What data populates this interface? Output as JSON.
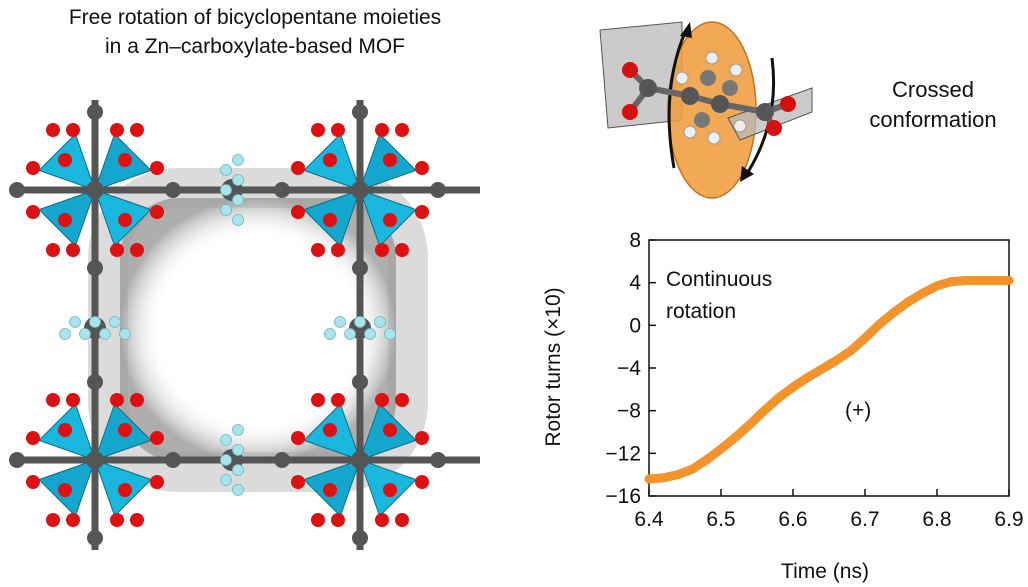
{
  "figure": {
    "title_line1": "Free rotation of bicyclopentane moieties",
    "title_line2": "in a Zn–carboxylate-based MOF",
    "conformation_line1": "Crossed",
    "conformation_line2": "conformation"
  },
  "colors": {
    "polyhedra": "#19b7dd",
    "oxygen": "#dd1111",
    "carbon": "#555555",
    "hydrogen": "#a9e4ea",
    "rotor_plane": "#f0a043",
    "curve": "#f2932c"
  },
  "chart_data": {
    "type": "line",
    "xlabel": "Time (ns)",
    "ylabel": "Rotor turns (×10)",
    "xlim": [
      6.4,
      6.9
    ],
    "ylim": [
      -16,
      8
    ],
    "xticks": [
      6.4,
      6.5,
      6.6,
      6.7,
      6.8,
      6.9
    ],
    "xtick_labels": [
      "6.4",
      "6.5",
      "6.6",
      "6.7",
      "6.8",
      "6.9"
    ],
    "yticks": [
      8,
      4,
      0,
      -4,
      -8,
      -12,
      -16
    ],
    "ytick_labels": [
      "8",
      "4",
      "0",
      "−4",
      "−8",
      "−12",
      "−16"
    ],
    "annotation_line1": "Continuous",
    "annotation_line2": "rotation",
    "series_label": "(+)",
    "grid": false,
    "series": [
      {
        "x": [
          6.4,
          6.42,
          6.44,
          6.46,
          6.48,
          6.5,
          6.52,
          6.54,
          6.56,
          6.58,
          6.6,
          6.62,
          6.64,
          6.66,
          6.68,
          6.7,
          6.72,
          6.74,
          6.76,
          6.78,
          6.8,
          6.82,
          6.84,
          6.86,
          6.88,
          6.9
        ],
        "y": [
          -14.4,
          -14.3,
          -14.0,
          -13.5,
          -12.6,
          -11.6,
          -10.5,
          -9.3,
          -8.0,
          -6.8,
          -5.8,
          -4.9,
          -4.1,
          -3.3,
          -2.4,
          -1.2,
          0.1,
          1.2,
          2.2,
          3.0,
          3.7,
          4.1,
          4.2,
          4.2,
          4.2,
          4.2
        ]
      }
    ]
  }
}
